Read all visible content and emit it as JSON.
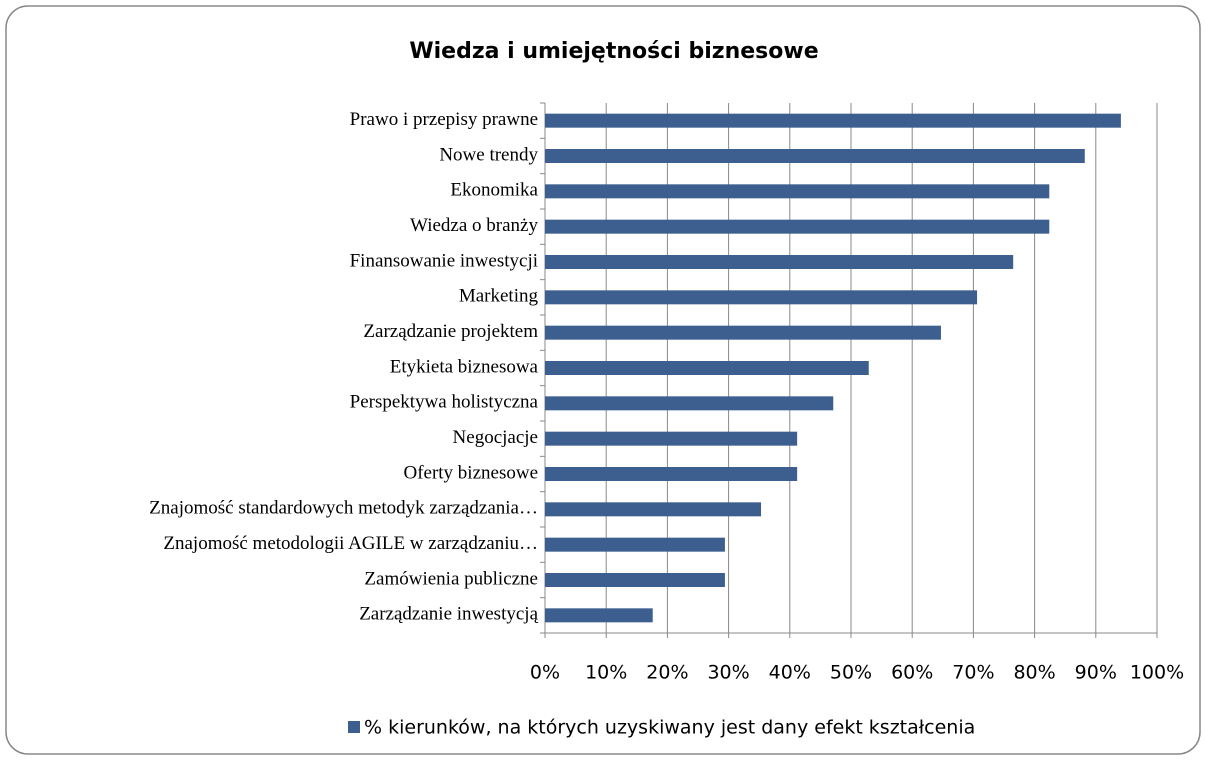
{
  "chart_data": {
    "type": "barh",
    "title": "Wiedza i umiejętności biznesowe",
    "categories": [
      "Prawo i przepisy prawne",
      "Nowe trendy",
      "Ekonomika",
      "Wiedza o branży",
      "Finansowanie inwestycji",
      "Marketing",
      "Zarządzanie projektem",
      "Etykieta biznesowa",
      "Perspektywa holistyczna",
      "Negocjacje",
      "Oferty biznesowe",
      "Znajomość standardowych metodyk zarządzania…",
      "Znajomość metodologii AGILE w zarządzaniu…",
      "Zamówienia publiczne",
      "Zarządzanie inwestycją"
    ],
    "series": [
      {
        "name": "% kierunków, na których uzyskiwany jest dany efekt kształcenia",
        "color": "#3c5f8f",
        "values": [
          94.1,
          88.2,
          82.4,
          82.4,
          76.5,
          70.6,
          64.7,
          52.9,
          47.1,
          41.2,
          41.2,
          35.3,
          29.4,
          29.4,
          17.6
        ]
      }
    ],
    "xlim": [
      0,
      100
    ],
    "xticks": [
      {
        "value": 0,
        "label": "0%"
      },
      {
        "value": 10,
        "label": "10%"
      },
      {
        "value": 20,
        "label": "20%"
      },
      {
        "value": 30,
        "label": "30%"
      },
      {
        "value": 40,
        "label": "40%"
      },
      {
        "value": 50,
        "label": "50%"
      },
      {
        "value": 60,
        "label": "60%"
      },
      {
        "value": 70,
        "label": "70%"
      },
      {
        "value": 80,
        "label": "80%"
      },
      {
        "value": 90,
        "label": "90%"
      },
      {
        "value": 100,
        "label": "100%"
      }
    ],
    "grid": true,
    "legend": "bottom"
  }
}
